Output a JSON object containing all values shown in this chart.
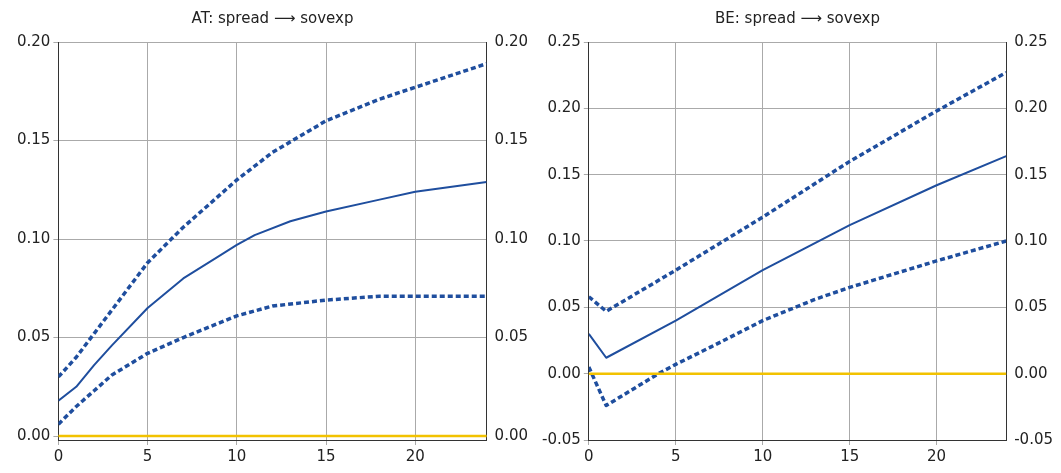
{
  "chart_data": [
    {
      "type": "line",
      "title": "AT: spread ⟶ sovexp",
      "xlim": [
        0,
        24
      ],
      "xticks": [
        0,
        5,
        10,
        15,
        20
      ],
      "ylim": [
        -0.002,
        0.2
      ],
      "yticks": [
        {
          "value": 0,
          "label": "0.00"
        },
        {
          "value": 0.05,
          "label": "0.05"
        },
        {
          "value": 0.1,
          "label": "0.10"
        },
        {
          "value": 0.15,
          "label": "0.15"
        },
        {
          "value": 0.2,
          "label": "0.20"
        }
      ],
      "y2lim": [
        -0.002,
        0.2
      ],
      "y2ticks": [
        {
          "value": 0,
          "label": "0.00"
        },
        {
          "value": 0.05,
          "label": "0.05"
        },
        {
          "value": 0.1,
          "label": "0.10"
        },
        {
          "value": 0.15,
          "label": "0.15"
        },
        {
          "value": 0.2,
          "label": "0.20"
        }
      ],
      "grid": true,
      "legend": false,
      "series": [
        {
          "color": "#1f4e9e",
          "line_style": "dashed",
          "x": [
            0,
            1,
            2,
            3,
            5,
            7,
            10,
            12,
            15,
            18,
            20,
            24
          ],
          "values": [
            0.03,
            0.04,
            0.052,
            0.064,
            0.088,
            0.106,
            0.13,
            0.144,
            0.16,
            0.171,
            0.177,
            0.189
          ]
        },
        {
          "color": "#1f4e9e",
          "line_style": "solid",
          "x": [
            0,
            1,
            2,
            3,
            5,
            7,
            10,
            11,
            13,
            15,
            18,
            20,
            24
          ],
          "values": [
            0.018,
            0.025,
            0.036,
            0.046,
            0.065,
            0.08,
            0.097,
            0.102,
            0.109,
            0.114,
            0.12,
            0.124,
            0.129
          ]
        },
        {
          "color": "#1f4e9e",
          "line_style": "dashed",
          "x": [
            0,
            1,
            2,
            3,
            5,
            7,
            10,
            12,
            15,
            18,
            20,
            24
          ],
          "values": [
            0.006,
            0.015,
            0.023,
            0.031,
            0.042,
            0.05,
            0.061,
            0.066,
            0.069,
            0.071,
            0.071,
            0.071
          ]
        }
      ],
      "ref_lines": [
        {
          "axis": "y",
          "value": 0,
          "color": "#f2c200"
        }
      ]
    },
    {
      "type": "line",
      "title": "BE: spread ⟶ sovexp",
      "xlim": [
        0,
        24
      ],
      "xticks": [
        0,
        5,
        10,
        15,
        20
      ],
      "ylim": [
        -0.05,
        0.25
      ],
      "yticks": [
        {
          "value": -0.05,
          "label": "-0.05"
        },
        {
          "value": 0,
          "label": "0.00"
        },
        {
          "value": 0.05,
          "label": "0.05"
        },
        {
          "value": 0.1,
          "label": "0.10"
        },
        {
          "value": 0.15,
          "label": "0.15"
        },
        {
          "value": 0.2,
          "label": "0.20"
        },
        {
          "value": 0.25,
          "label": "0.25"
        }
      ],
      "y2lim": [
        -0.05,
        0.25
      ],
      "y2ticks": [
        {
          "value": -0.05,
          "label": "-0.05"
        },
        {
          "value": 0,
          "label": "0.00"
        },
        {
          "value": 0.05,
          "label": "0.05"
        },
        {
          "value": 0.1,
          "label": "0.10"
        },
        {
          "value": 0.15,
          "label": "0.15"
        },
        {
          "value": 0.2,
          "label": "0.20"
        },
        {
          "value": 0.25,
          "label": "0.25"
        }
      ],
      "grid": true,
      "legend": false,
      "series": [
        {
          "color": "#1f4e9e",
          "line_style": "dashed",
          "x": [
            0,
            1,
            5,
            10,
            15,
            20,
            24
          ],
          "values": [
            0.058,
            0.047,
            0.078,
            0.118,
            0.16,
            0.198,
            0.227
          ]
        },
        {
          "color": "#1f4e9e",
          "line_style": "solid",
          "x": [
            0,
            1,
            5,
            10,
            15,
            20,
            24
          ],
          "values": [
            0.03,
            0.012,
            0.04,
            0.078,
            0.112,
            0.142,
            0.164
          ]
        },
        {
          "color": "#1f4e9e",
          "line_style": "dashed",
          "x": [
            0,
            1,
            2,
            3,
            4,
            5,
            7,
            10,
            13,
            15,
            18,
            20,
            24
          ],
          "values": [
            0.005,
            -0.024,
            -0.016,
            -0.008,
            0.0,
            0.007,
            0.02,
            0.04,
            0.056,
            0.065,
            0.077,
            0.085,
            0.1
          ]
        }
      ],
      "ref_lines": [
        {
          "axis": "y",
          "value": 0,
          "color": "#f2c200"
        }
      ]
    }
  ]
}
